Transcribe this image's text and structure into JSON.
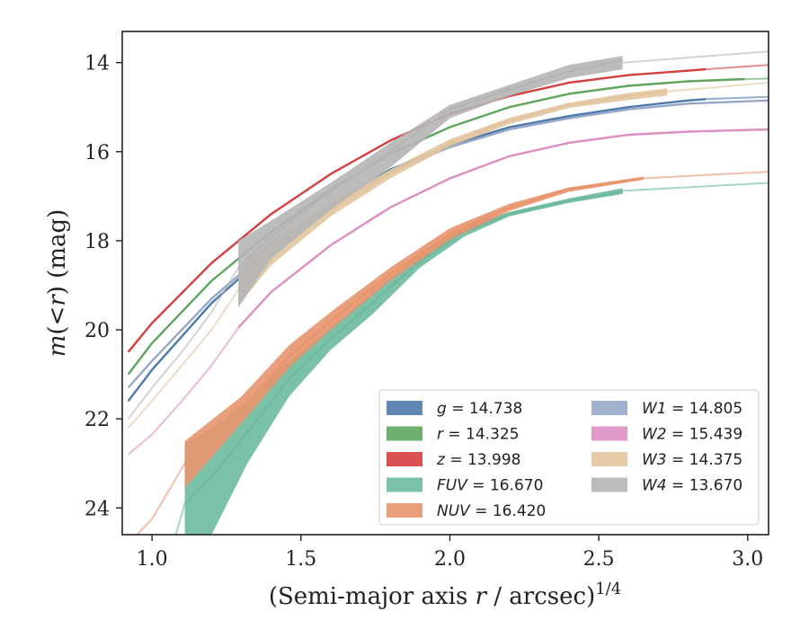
{
  "chart_data": {
    "type": "line",
    "title": "",
    "xlabel": "(Semi-major axis r / arcsec)^{1/4}",
    "ylabel": "m(<r) (mag)",
    "xlim": [
      0.9,
      3.07
    ],
    "ylim": [
      24.6,
      13.3
    ],
    "y_inverted": true,
    "x_ticks": [
      1.0,
      1.5,
      2.0,
      2.5,
      3.0
    ],
    "x_tick_labels": [
      "1.0",
      "1.5",
      "2.0",
      "2.5",
      "3.0"
    ],
    "y_ticks": [
      14,
      16,
      18,
      20,
      22,
      24
    ],
    "y_tick_labels": [
      "14",
      "16",
      "18",
      "20",
      "22",
      "24"
    ],
    "grid": false,
    "legend_position": "lower-right",
    "legend_columns": 2,
    "series": [
      {
        "name": "g = 14.738",
        "legend_parts": [
          "g",
          " = 14.738"
        ],
        "color": "#4c7aab",
        "points": [
          [
            0.92,
            21.6
          ],
          [
            1.0,
            20.9
          ],
          [
            1.2,
            19.4
          ],
          [
            1.4,
            18.2
          ],
          [
            1.6,
            17.2
          ],
          [
            1.8,
            16.4
          ],
          [
            2.0,
            15.85
          ],
          [
            2.2,
            15.45
          ],
          [
            2.4,
            15.2
          ],
          [
            2.6,
            15.0
          ],
          [
            2.8,
            14.85
          ],
          [
            2.86,
            14.82
          ]
        ],
        "band_halfwidth": 0.04,
        "faded": [
          [
            2.86,
            14.82
          ],
          [
            3.07,
            14.77
          ]
        ]
      },
      {
        "name": "r = 14.325",
        "legend_parts": [
          "r",
          " = 14.325"
        ],
        "color": "#5ea65e",
        "points": [
          [
            0.92,
            21.0
          ],
          [
            1.0,
            20.3
          ],
          [
            1.2,
            18.9
          ],
          [
            1.4,
            17.8
          ],
          [
            1.6,
            16.85
          ],
          [
            1.8,
            16.05
          ],
          [
            2.0,
            15.45
          ],
          [
            2.2,
            15.0
          ],
          [
            2.4,
            14.7
          ],
          [
            2.6,
            14.52
          ],
          [
            2.8,
            14.42
          ],
          [
            2.99,
            14.37
          ]
        ],
        "band_halfwidth": 0.04,
        "faded": [
          [
            2.99,
            14.37
          ],
          [
            3.07,
            14.36
          ]
        ]
      },
      {
        "name": "z = 13.998",
        "legend_parts": [
          "z",
          " = 13.998"
        ],
        "color": "#d43f3f",
        "points": [
          [
            0.92,
            20.5
          ],
          [
            1.0,
            19.85
          ],
          [
            1.2,
            18.5
          ],
          [
            1.4,
            17.4
          ],
          [
            1.6,
            16.5
          ],
          [
            1.8,
            15.75
          ],
          [
            2.0,
            15.15
          ],
          [
            2.2,
            14.75
          ],
          [
            2.4,
            14.45
          ],
          [
            2.6,
            14.28
          ],
          [
            2.86,
            14.15
          ]
        ],
        "band_halfwidth": 0.04,
        "faded": [
          [
            2.86,
            14.15
          ],
          [
            3.07,
            14.05
          ]
        ]
      },
      {
        "name": "FUV = 16.670",
        "legend_parts": [
          "FUV",
          " = 16.670"
        ],
        "color": "#6dba9f",
        "points": [
          [
            1.11,
            23.9
          ],
          [
            1.2,
            23.3
          ],
          [
            1.32,
            22.3
          ],
          [
            1.46,
            21.1
          ],
          [
            1.6,
            20.2
          ],
          [
            1.74,
            19.4
          ],
          [
            1.9,
            18.45
          ],
          [
            2.05,
            17.8
          ],
          [
            2.2,
            17.4
          ],
          [
            2.4,
            17.1
          ],
          [
            2.58,
            16.9
          ]
        ],
        "band_lo": [
          [
            1.11,
            22.55
          ],
          [
            1.2,
            22.2
          ],
          [
            1.32,
            21.6
          ],
          [
            1.46,
            20.7
          ],
          [
            1.6,
            19.95
          ],
          [
            1.74,
            19.15
          ],
          [
            1.9,
            18.3
          ],
          [
            2.05,
            17.7
          ],
          [
            2.2,
            17.35
          ],
          [
            2.4,
            17.05
          ],
          [
            2.58,
            16.82
          ]
        ],
        "band_hi": [
          [
            1.11,
            24.6
          ],
          [
            1.2,
            24.6
          ],
          [
            1.32,
            23.0
          ],
          [
            1.46,
            21.5
          ],
          [
            1.6,
            20.45
          ],
          [
            1.74,
            19.65
          ],
          [
            1.9,
            18.6
          ],
          [
            2.05,
            17.9
          ],
          [
            2.2,
            17.45
          ],
          [
            2.4,
            17.15
          ],
          [
            2.58,
            16.95
          ]
        ],
        "faded": [
          [
            2.58,
            16.88
          ],
          [
            3.07,
            16.7
          ]
        ],
        "faded_lo": [
          [
            1.08,
            24.6
          ],
          [
            1.11,
            23.9
          ]
        ]
      },
      {
        "name": "NUV = 16.420",
        "legend_parts": [
          "NUV",
          " = 16.420"
        ],
        "color": "#e8956e",
        "points": [
          [
            1.11,
            23.0
          ],
          [
            1.3,
            21.8
          ],
          [
            1.46,
            20.6
          ],
          [
            1.6,
            19.8
          ],
          [
            1.8,
            18.75
          ],
          [
            2.0,
            17.85
          ],
          [
            2.2,
            17.25
          ],
          [
            2.4,
            16.85
          ],
          [
            2.65,
            16.6
          ]
        ],
        "band_lo": [
          [
            1.11,
            22.5
          ],
          [
            1.3,
            21.5
          ],
          [
            1.46,
            20.35
          ],
          [
            1.6,
            19.6
          ],
          [
            1.8,
            18.6
          ],
          [
            2.0,
            17.72
          ],
          [
            2.2,
            17.17
          ],
          [
            2.4,
            16.8
          ],
          [
            2.65,
            16.56
          ]
        ],
        "band_hi": [
          [
            1.11,
            23.55
          ],
          [
            1.3,
            22.1
          ],
          [
            1.46,
            20.85
          ],
          [
            1.6,
            20.0
          ],
          [
            1.8,
            18.9
          ],
          [
            2.0,
            17.98
          ],
          [
            2.2,
            17.33
          ],
          [
            2.4,
            16.9
          ],
          [
            2.65,
            16.63
          ]
        ],
        "faded": [
          [
            2.65,
            16.6
          ],
          [
            3.07,
            16.45
          ]
        ],
        "faded_lo": [
          [
            0.95,
            24.6
          ],
          [
            1.0,
            24.25
          ],
          [
            1.11,
            23.0
          ]
        ]
      },
      {
        "name": "W1 = 14.805",
        "legend_parts": [
          "W1",
          " = 14.805"
        ],
        "color": "#97a7c9",
        "points": [
          [
            0.92,
            21.3
          ],
          [
            1.0,
            20.7
          ],
          [
            1.2,
            19.3
          ],
          [
            1.4,
            18.15
          ],
          [
            1.6,
            17.2
          ],
          [
            1.8,
            16.45
          ],
          [
            2.0,
            15.9
          ],
          [
            2.2,
            15.5
          ],
          [
            2.4,
            15.25
          ],
          [
            2.6,
            15.05
          ],
          [
            2.8,
            14.92
          ],
          [
            3.07,
            14.85
          ]
        ],
        "band_halfwidth": 0.03
      },
      {
        "name": "W2 = 15.439",
        "legend_parts": [
          "W2",
          " = 15.439"
        ],
        "color": "#dd8fc2",
        "points": [
          [
            1.29,
            19.95
          ],
          [
            1.4,
            19.15
          ],
          [
            1.6,
            18.1
          ],
          [
            1.8,
            17.25
          ],
          [
            2.0,
            16.6
          ],
          [
            2.2,
            16.1
          ],
          [
            2.4,
            15.8
          ],
          [
            2.6,
            15.62
          ],
          [
            2.8,
            15.55
          ],
          [
            3.07,
            15.5
          ]
        ],
        "band_halfwidth": 0.05,
        "faded_lo": [
          [
            0.92,
            22.8
          ],
          [
            1.0,
            22.35
          ],
          [
            1.1,
            21.6
          ],
          [
            1.2,
            20.8
          ],
          [
            1.29,
            19.95
          ]
        ]
      },
      {
        "name": "W3 = 14.375",
        "legend_parts": [
          "W3",
          " = 14.375"
        ],
        "color": "#e2c59f",
        "points": [
          [
            1.29,
            19.1
          ],
          [
            1.4,
            18.3
          ],
          [
            1.6,
            17.3
          ],
          [
            1.8,
            16.5
          ],
          [
            2.0,
            15.8
          ],
          [
            2.2,
            15.3
          ],
          [
            2.4,
            14.95
          ],
          [
            2.6,
            14.75
          ],
          [
            2.73,
            14.65
          ]
        ],
        "band_lo": [
          [
            1.29,
            18.65
          ],
          [
            1.4,
            18.0
          ],
          [
            1.6,
            17.15
          ],
          [
            1.8,
            16.4
          ],
          [
            2.0,
            15.72
          ],
          [
            2.2,
            15.24
          ],
          [
            2.4,
            14.9
          ],
          [
            2.6,
            14.68
          ],
          [
            2.73,
            14.58
          ]
        ],
        "band_hi": [
          [
            1.29,
            19.45
          ],
          [
            1.4,
            18.55
          ],
          [
            1.6,
            17.45
          ],
          [
            1.8,
            16.6
          ],
          [
            2.0,
            15.88
          ],
          [
            2.2,
            15.38
          ],
          [
            2.4,
            15.02
          ],
          [
            2.6,
            14.84
          ],
          [
            2.73,
            14.74
          ]
        ],
        "faded": [
          [
            2.73,
            14.65
          ],
          [
            3.07,
            14.45
          ]
        ],
        "faded_lo": [
          [
            0.92,
            22.2
          ],
          [
            1.0,
            21.6
          ],
          [
            1.1,
            20.8
          ],
          [
            1.2,
            20.0
          ],
          [
            1.29,
            19.1
          ]
        ]
      },
      {
        "name": "W4 = 13.670",
        "legend_parts": [
          "W4",
          " = 13.670"
        ],
        "color": "#b5b5b5",
        "points": [
          [
            1.29,
            18.6
          ],
          [
            1.4,
            17.9
          ],
          [
            1.6,
            16.9
          ],
          [
            1.8,
            16.0
          ],
          [
            2.0,
            15.05
          ],
          [
            2.2,
            14.6
          ],
          [
            2.4,
            14.2
          ],
          [
            2.58,
            13.95
          ]
        ],
        "band_lo": [
          [
            1.29,
            18.0
          ],
          [
            1.4,
            17.55
          ],
          [
            1.6,
            16.7
          ],
          [
            1.8,
            15.8
          ],
          [
            2.0,
            14.95
          ],
          [
            2.2,
            14.5
          ],
          [
            2.4,
            14.05
          ],
          [
            2.58,
            13.85
          ]
        ],
        "band_hi": [
          [
            1.29,
            19.5
          ],
          [
            1.4,
            18.4
          ],
          [
            1.6,
            17.3
          ],
          [
            1.8,
            16.35
          ],
          [
            2.0,
            15.25
          ],
          [
            2.2,
            14.75
          ],
          [
            2.4,
            14.35
          ],
          [
            2.58,
            14.15
          ]
        ],
        "faded": [
          [
            2.58,
            14.0
          ],
          [
            3.07,
            13.75
          ]
        ],
        "faded_lo": [
          [
            0.92,
            22.0
          ],
          [
            1.0,
            21.3
          ],
          [
            1.1,
            20.5
          ],
          [
            1.2,
            19.6
          ],
          [
            1.29,
            18.6
          ]
        ]
      }
    ]
  }
}
